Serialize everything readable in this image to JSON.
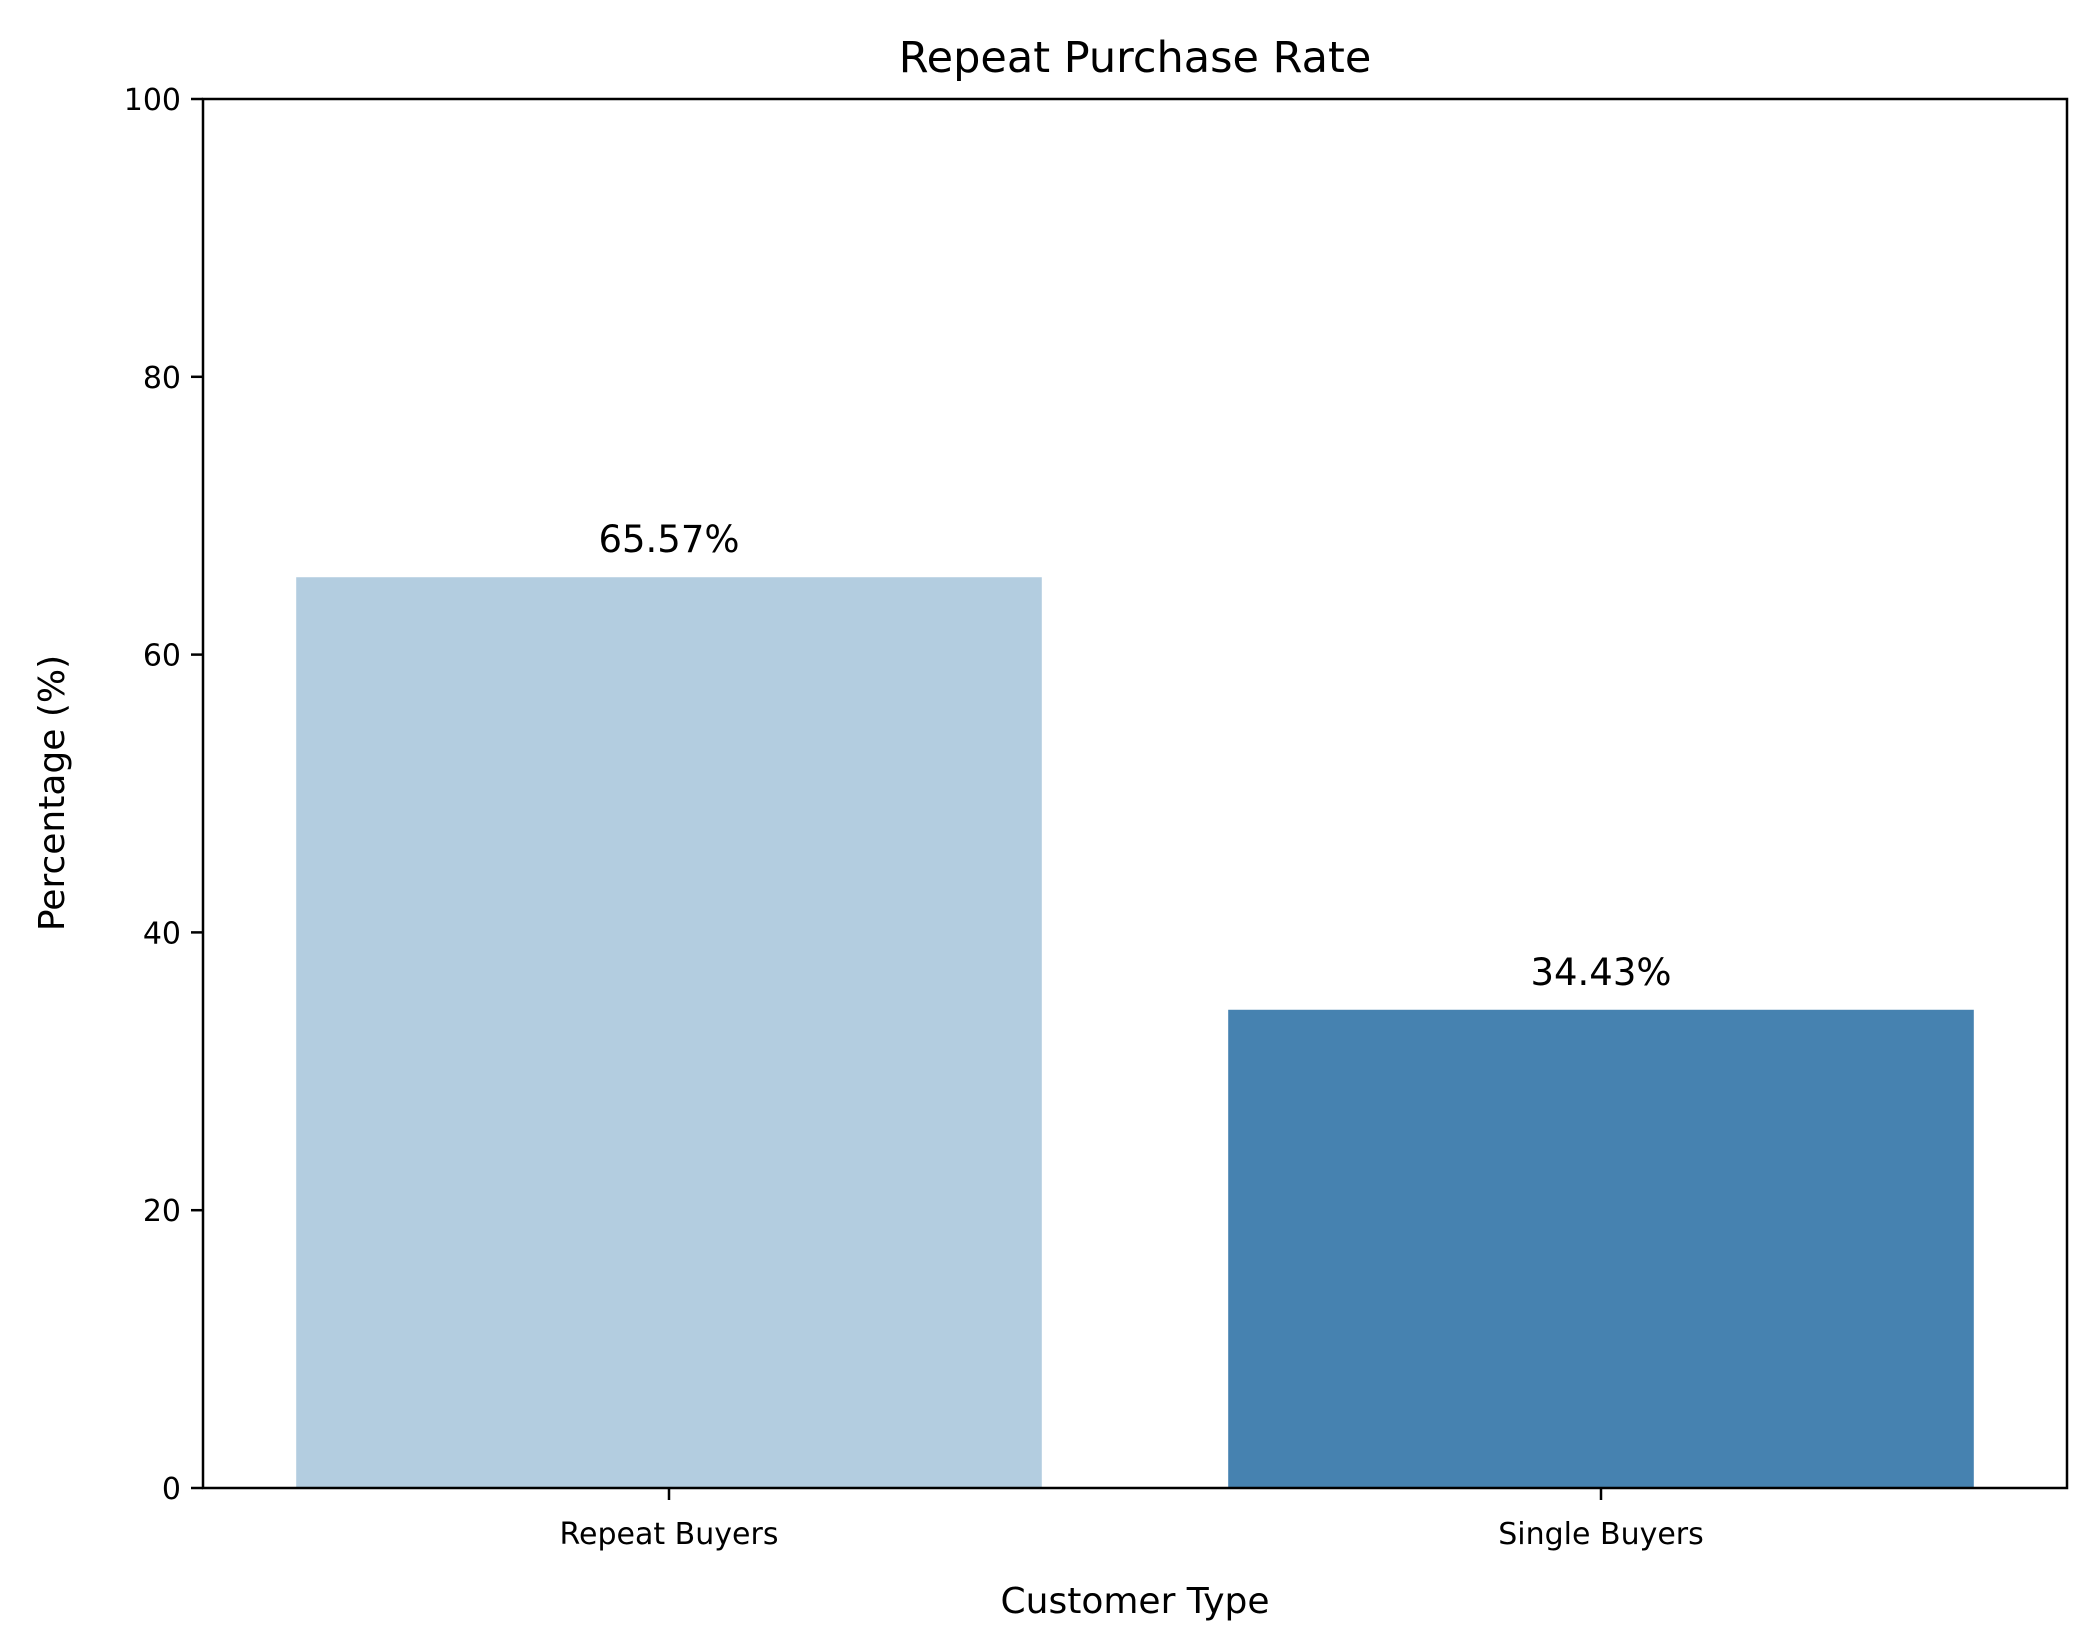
{
  "chart_data": {
    "type": "bar",
    "title": "Repeat Purchase Rate",
    "xlabel": "Customer Type",
    "ylabel": "Percentage (%)",
    "categories": [
      "Repeat Buyers",
      "Single Buyers"
    ],
    "values": [
      65.57,
      34.43
    ],
    "value_labels": [
      "65.57%",
      "34.43%"
    ],
    "colors": [
      "#b3cde0",
      "#4682b0"
    ],
    "ylim": [
      0,
      100
    ],
    "yticks": [
      0,
      20,
      40,
      60,
      80,
      100
    ],
    "ytick_labels": [
      "0",
      "20",
      "40",
      "60",
      "80",
      "100"
    ],
    "grid": false,
    "legend": "none"
  }
}
